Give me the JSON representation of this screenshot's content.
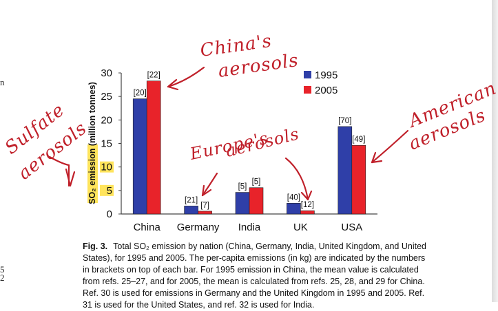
{
  "margin": {
    "letter": "n",
    "digits": [
      "5",
      "2"
    ]
  },
  "chart_data": {
    "type": "bar",
    "categories": [
      "China",
      "Germany",
      "India",
      "UK",
      "USA"
    ],
    "series": [
      {
        "name": "1995",
        "color": "#2f3fa8",
        "values": [
          24.5,
          1.7,
          4.6,
          2.3,
          18.6
        ],
        "labels": [
          "[20]",
          "[21]",
          "[5]",
          "[40]",
          "[70]"
        ]
      },
      {
        "name": "2005",
        "color": "#e8232a",
        "values": [
          28.3,
          0.6,
          5.6,
          0.7,
          14.6
        ],
        "labels": [
          "[22]",
          "[7]",
          "[5]",
          "[12]",
          "[49]"
        ]
      }
    ],
    "ylim": [
      0,
      30
    ],
    "yticks": [
      "0",
      "5",
      "10",
      "15",
      "20",
      "25",
      "30"
    ],
    "highlighted_ticks": [
      "5",
      "10"
    ],
    "ylabel": "SO₂ emission (million tonnes)",
    "legend_position": "top-right",
    "grid": false
  },
  "annotations": {
    "color": "#c0202a",
    "china": [
      "China's",
      "aerosols"
    ],
    "sulfate": [
      "Sulfate",
      "aerosols"
    ],
    "europe": [
      "Europe's",
      "aerosols"
    ],
    "american": [
      "American",
      "aerosols"
    ]
  },
  "caption": {
    "label": "Fig. 3.",
    "text": "Total SO₂ emission by nation (China, Germany, India, United Kingdom, and United States), for 1995 and 2005. The per-capita emissions (in kg) are indicated by the numbers in brackets on top of each bar. For 1995 emission in China, the mean value is calculated from refs. 25–27, and for 2005, the mean is calculated from refs. 25, 28, and 29 for China. Ref. 30 is used for emissions in Germany and the United Kingdom in 1995 and 2005. Ref. 31 is used for the United States, and ref. 32 is used for India."
  }
}
